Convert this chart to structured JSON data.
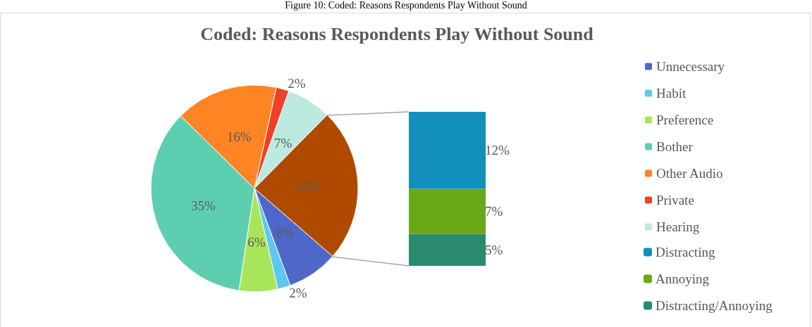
{
  "chart_data": [
    {
      "type": "pie",
      "title": "Coded: Reasons Respondents Play Without Sound",
      "annotations": [
        "Figure 10: Coded: Reasons Respondents Play Without Sound"
      ],
      "categories": [
        "Unnecessary",
        "Habit",
        "Preference",
        "Bother",
        "Other Audio",
        "Private",
        "Hearing",
        null
      ],
      "values": [
        8,
        2,
        6,
        35,
        16,
        2,
        7,
        24
      ],
      "colors": [
        "#4f67c9",
        "#5bc8f0",
        "#a8e55a",
        "#5dcfb0",
        "#ff8424",
        "#ee4127",
        "#bdeadf",
        "#b04a00"
      ],
      "value_labels": [
        "8%",
        "2%",
        "6%",
        "35%",
        "16%",
        "2%",
        "7%",
        "24%"
      ],
      "legend": "right"
    },
    {
      "type": "bar",
      "stacked": true,
      "categories": [
        null
      ],
      "series": [
        {
          "name": "Distracting/Annoying",
          "color": "#2a8a70",
          "values": [
            5
          ],
          "value_labels": [
            "5%"
          ]
        },
        {
          "name": "Annoying",
          "color": "#6aa817",
          "values": [
            7
          ],
          "value_labels": [
            "7%"
          ]
        },
        {
          "name": "Distracting",
          "color": "#1290bc",
          "values": [
            12
          ],
          "value_labels": [
            "12%"
          ]
        }
      ],
      "legend": "right"
    }
  ]
}
